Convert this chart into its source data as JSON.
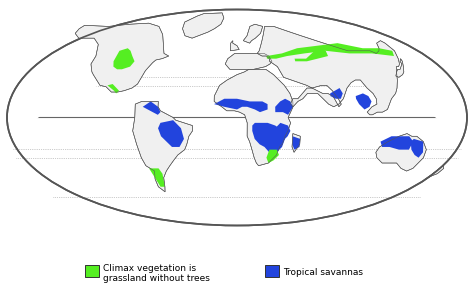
{
  "background_color": "#ffffff",
  "land_color": "#f0f0f0",
  "border_color": "#555555",
  "green_color": "#55ee22",
  "blue_color": "#2244dd",
  "legend_green_label1": "Climax vegetation is",
  "legend_green_label2": "grassland without trees",
  "legend_blue_label": "Tropical savannas",
  "figsize": [
    4.74,
    2.87
  ],
  "dpi": 100,
  "grid_color": "#999999",
  "equator_color": "#666666"
}
